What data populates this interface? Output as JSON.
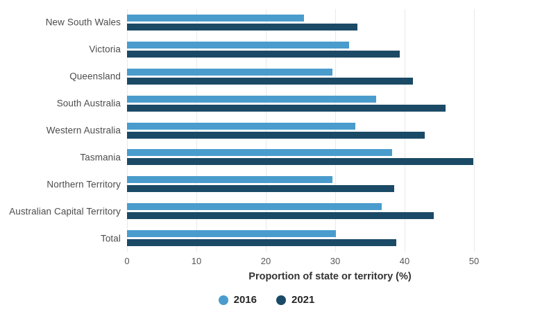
{
  "chart_data": {
    "type": "bar",
    "orientation": "horizontal",
    "title": "",
    "xlabel": "Proportion of state or territory (%)",
    "xlim": [
      0,
      50
    ],
    "xticks": [
      0,
      10,
      20,
      30,
      40,
      50
    ],
    "grid": "vertical",
    "legend_position": "bottom-center",
    "background_color": "#ffffff",
    "gridline_color": "#e7e9ea",
    "categories": [
      "New South Wales",
      "Victoria",
      "Queensland",
      "South Australia",
      "Western Australia",
      "Tasmania",
      "Northern Territory",
      "Australian Capital Territory",
      "Total"
    ],
    "series": [
      {
        "name": "2016",
        "color": "#4a9ccd",
        "values": [
          25.5,
          32.0,
          29.6,
          35.9,
          32.9,
          38.2,
          29.6,
          36.7,
          30.1
        ]
      },
      {
        "name": "2021",
        "color": "#1b4a66",
        "values": [
          33.2,
          39.3,
          41.2,
          45.9,
          42.9,
          49.9,
          38.5,
          44.2,
          38.8
        ]
      }
    ]
  }
}
